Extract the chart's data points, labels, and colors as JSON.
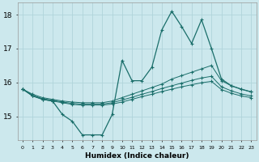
{
  "xlabel": "Humidex (Indice chaleur)",
  "background_color": "#cce8ed",
  "grid_color": "#b0d4da",
  "line_color": "#1a6e6a",
  "x_values": [
    0,
    1,
    2,
    3,
    4,
    5,
    6,
    7,
    8,
    9,
    10,
    11,
    12,
    13,
    14,
    15,
    16,
    17,
    18,
    19,
    20,
    21,
    22,
    23
  ],
  "series": {
    "top_flat": [
      15.8,
      15.65,
      15.55,
      15.5,
      15.45,
      15.42,
      15.4,
      15.4,
      15.4,
      15.45,
      15.55,
      15.65,
      15.75,
      15.85,
      15.95,
      16.1,
      16.2,
      16.3,
      16.4,
      16.5,
      16.05,
      15.9,
      15.8,
      15.72
    ],
    "mid_flat": [
      15.8,
      15.62,
      15.52,
      15.47,
      15.42,
      15.38,
      15.36,
      15.36,
      15.36,
      15.4,
      15.48,
      15.56,
      15.65,
      15.73,
      15.82,
      15.9,
      15.98,
      16.06,
      16.13,
      16.18,
      15.87,
      15.75,
      15.66,
      15.6
    ],
    "bot_flat": [
      15.8,
      15.6,
      15.5,
      15.45,
      15.4,
      15.35,
      15.33,
      15.33,
      15.33,
      15.36,
      15.42,
      15.5,
      15.58,
      15.65,
      15.73,
      15.8,
      15.87,
      15.93,
      15.99,
      16.03,
      15.79,
      15.68,
      15.6,
      15.55
    ],
    "curve": [
      15.8,
      15.6,
      15.5,
      15.45,
      15.05,
      14.85,
      14.45,
      14.45,
      14.45,
      15.05,
      16.65,
      16.05,
      16.05,
      16.45,
      17.55,
      18.1,
      17.65,
      17.15,
      17.85,
      17.0,
      16.1,
      15.9,
      15.8,
      15.72
    ]
  },
  "ylim": [
    14.3,
    18.35
  ],
  "yticks": [
    15,
    16,
    17,
    18
  ],
  "xticks": [
    0,
    1,
    2,
    3,
    4,
    5,
    6,
    7,
    8,
    9,
    10,
    11,
    12,
    13,
    14,
    15,
    16,
    17,
    18,
    19,
    20,
    21,
    22,
    23
  ],
  "marker": "+"
}
